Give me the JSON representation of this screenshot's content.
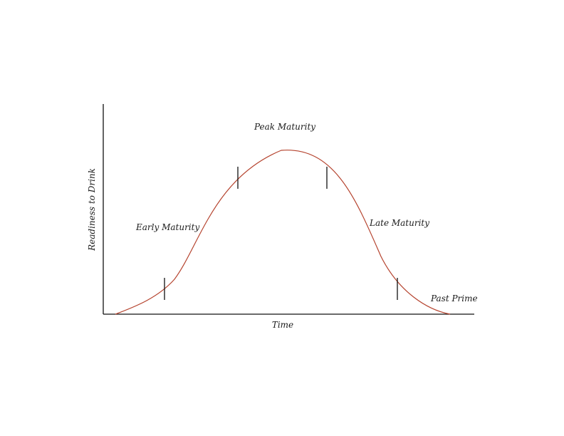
{
  "chart_data": {
    "type": "line",
    "title": "",
    "xlabel": "Time",
    "ylabel": "Readiness to Drink",
    "grid": false,
    "legend": "none",
    "axis_ticks": false,
    "curve_shape": "bell",
    "curve_color": "#b5432e",
    "axis_color": "#111111",
    "stages": [
      {
        "name": "Early Maturity"
      },
      {
        "name": "Peak Maturity"
      },
      {
        "name": "Late Maturity"
      },
      {
        "name": "Past Prime"
      }
    ],
    "stage_markers": 4
  }
}
